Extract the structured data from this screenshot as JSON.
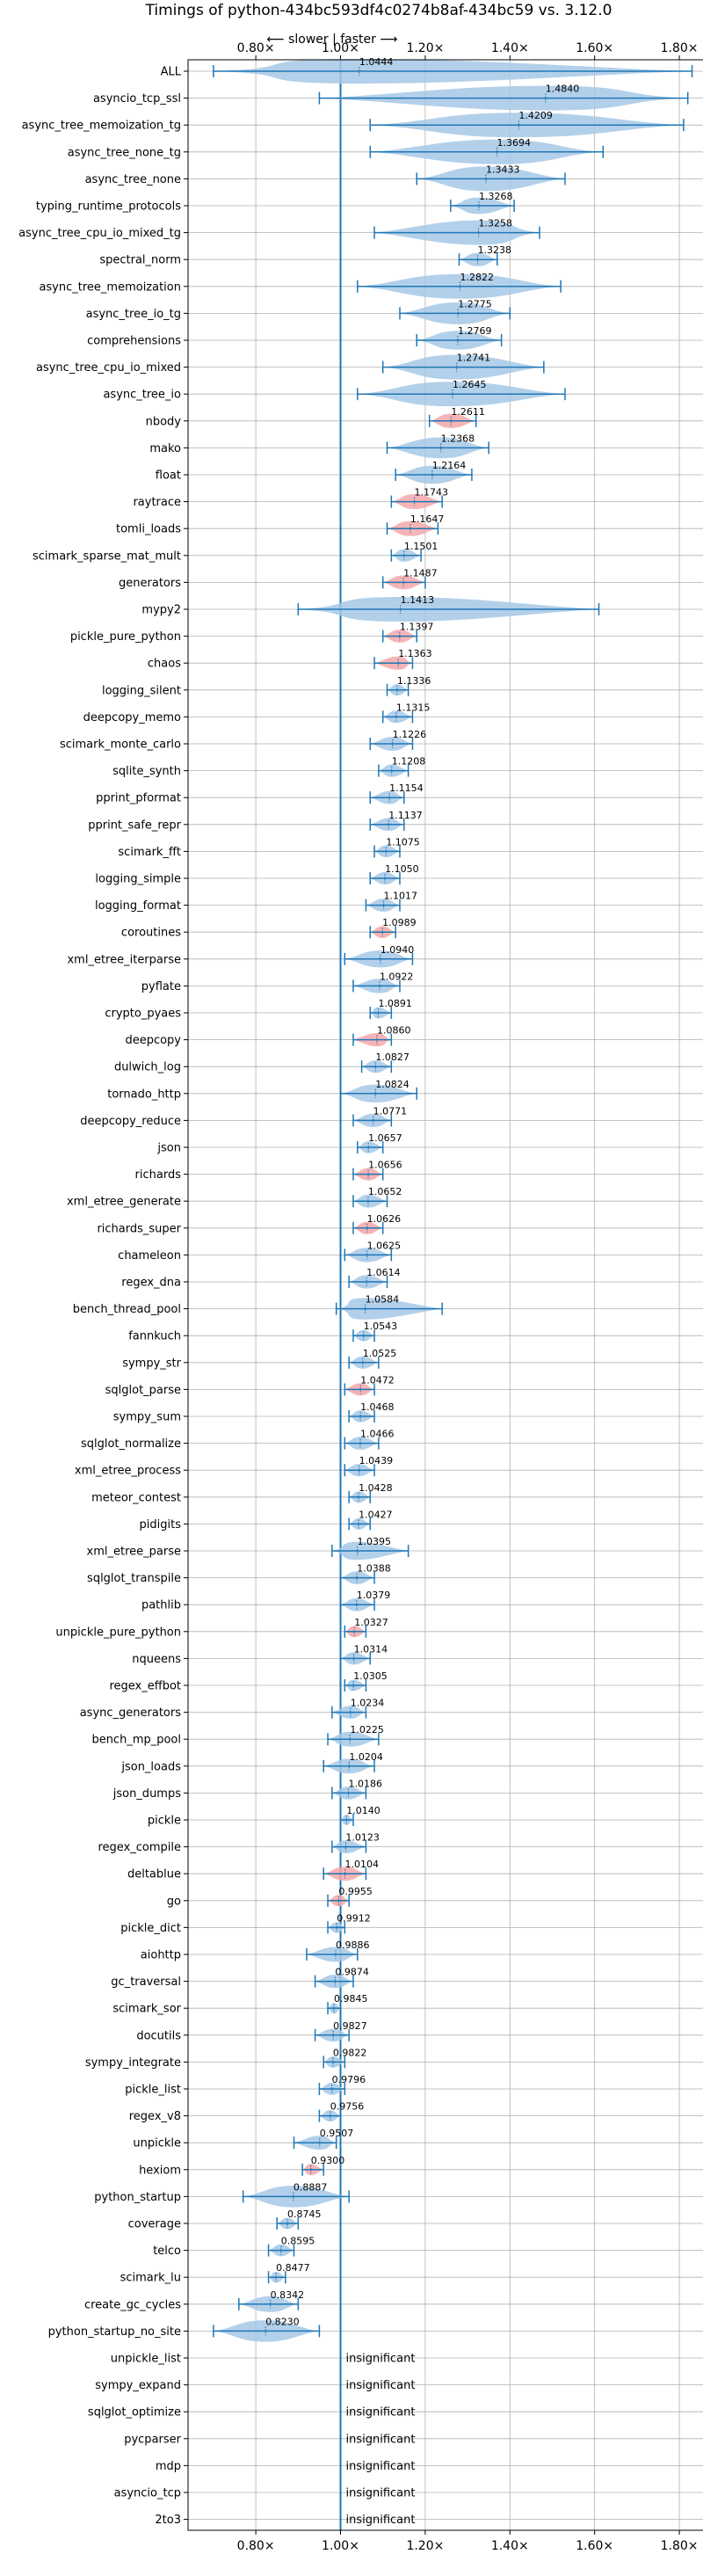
{
  "chart_data": {
    "type": "violin",
    "title": "Timings of python-434bc593df4c0274b8af-434bc59 vs. 3.12.0",
    "direction_label": "⟵ slower | faster ⟶",
    "xlim": [
      0.64,
      1.86
    ],
    "x_ticks": [
      0.8,
      1.0,
      1.2,
      1.4,
      1.6,
      1.8
    ],
    "x_tick_labels": [
      "0.80×",
      "1.00×",
      "1.20×",
      "1.40×",
      "1.60×",
      "1.80×"
    ],
    "reference_line": 1.0,
    "grid": true,
    "colors": {
      "normal": "#a6c8e6",
      "highlight": "#f4a7a9",
      "line": "#1f77b4",
      "grid": "#b0b0b0"
    },
    "insignificant_label": "insignificant",
    "benchmarks": [
      {
        "name": "ALL",
        "value": "1.0444",
        "mid": 1.0444,
        "min": 0.7,
        "max": 1.83
      },
      {
        "name": "asyncio_tcp_ssl",
        "value": "1.4840",
        "mid": 1.484,
        "min": 0.95,
        "max": 1.82
      },
      {
        "name": "async_tree_memoization_tg",
        "value": "1.4209",
        "mid": 1.4209,
        "min": 1.07,
        "max": 1.81
      },
      {
        "name": "async_tree_none_tg",
        "value": "1.3694",
        "mid": 1.3694,
        "min": 1.07,
        "max": 1.62
      },
      {
        "name": "async_tree_none",
        "value": "1.3433",
        "mid": 1.3433,
        "min": 1.18,
        "max": 1.53
      },
      {
        "name": "typing_runtime_protocols",
        "value": "1.3268",
        "mid": 1.3268,
        "min": 1.26,
        "max": 1.41
      },
      {
        "name": "async_tree_cpu_io_mixed_tg",
        "value": "1.3258",
        "mid": 1.3258,
        "min": 1.08,
        "max": 1.47
      },
      {
        "name": "spectral_norm",
        "value": "1.3238",
        "mid": 1.3238,
        "min": 1.28,
        "max": 1.37
      },
      {
        "name": "async_tree_memoization",
        "value": "1.2822",
        "mid": 1.2822,
        "min": 1.04,
        "max": 1.52
      },
      {
        "name": "async_tree_io_tg",
        "value": "1.2775",
        "mid": 1.2775,
        "min": 1.14,
        "max": 1.4
      },
      {
        "name": "comprehensions",
        "value": "1.2769",
        "mid": 1.2769,
        "min": 1.18,
        "max": 1.38
      },
      {
        "name": "async_tree_cpu_io_mixed",
        "value": "1.2741",
        "mid": 1.2741,
        "min": 1.1,
        "max": 1.48
      },
      {
        "name": "async_tree_io",
        "value": "1.2645",
        "mid": 1.2645,
        "min": 1.04,
        "max": 1.53
      },
      {
        "name": "nbody",
        "value": "1.2611",
        "mid": 1.2611,
        "min": 1.21,
        "max": 1.32,
        "highlight": true
      },
      {
        "name": "mako",
        "value": "1.2368",
        "mid": 1.2368,
        "min": 1.11,
        "max": 1.35
      },
      {
        "name": "float",
        "value": "1.2164",
        "mid": 1.2164,
        "min": 1.13,
        "max": 1.31
      },
      {
        "name": "raytrace",
        "value": "1.1743",
        "mid": 1.1743,
        "min": 1.12,
        "max": 1.24,
        "highlight": true
      },
      {
        "name": "tomli_loads",
        "value": "1.1647",
        "mid": 1.1647,
        "min": 1.11,
        "max": 1.23,
        "highlight": true
      },
      {
        "name": "scimark_sparse_mat_mult",
        "value": "1.1501",
        "mid": 1.1501,
        "min": 1.12,
        "max": 1.19
      },
      {
        "name": "generators",
        "value": "1.1487",
        "mid": 1.1487,
        "min": 1.1,
        "max": 1.2,
        "highlight": true
      },
      {
        "name": "mypy2",
        "value": "1.1413",
        "mid": 1.1413,
        "min": 0.9,
        "max": 1.61
      },
      {
        "name": "pickle_pure_python",
        "value": "1.1397",
        "mid": 1.1397,
        "min": 1.1,
        "max": 1.18,
        "highlight": true
      },
      {
        "name": "chaos",
        "value": "1.1363",
        "mid": 1.1363,
        "min": 1.08,
        "max": 1.17,
        "highlight": true
      },
      {
        "name": "logging_silent",
        "value": "1.1336",
        "mid": 1.1336,
        "min": 1.11,
        "max": 1.16
      },
      {
        "name": "deepcopy_memo",
        "value": "1.1315",
        "mid": 1.1315,
        "min": 1.1,
        "max": 1.17
      },
      {
        "name": "scimark_monte_carlo",
        "value": "1.1226",
        "mid": 1.1226,
        "min": 1.07,
        "max": 1.17
      },
      {
        "name": "sqlite_synth",
        "value": "1.1208",
        "mid": 1.1208,
        "min": 1.09,
        "max": 1.16
      },
      {
        "name": "pprint_pformat",
        "value": "1.1154",
        "mid": 1.1154,
        "min": 1.07,
        "max": 1.15
      },
      {
        "name": "pprint_safe_repr",
        "value": "1.1137",
        "mid": 1.1137,
        "min": 1.07,
        "max": 1.15
      },
      {
        "name": "scimark_fft",
        "value": "1.1075",
        "mid": 1.1075,
        "min": 1.08,
        "max": 1.14
      },
      {
        "name": "logging_simple",
        "value": "1.1050",
        "mid": 1.105,
        "min": 1.07,
        "max": 1.14
      },
      {
        "name": "logging_format",
        "value": "1.1017",
        "mid": 1.1017,
        "min": 1.06,
        "max": 1.14
      },
      {
        "name": "coroutines",
        "value": "1.0989",
        "mid": 1.0989,
        "min": 1.07,
        "max": 1.13,
        "highlight": true
      },
      {
        "name": "xml_etree_iterparse",
        "value": "1.0940",
        "mid": 1.094,
        "min": 1.01,
        "max": 1.17
      },
      {
        "name": "pyflate",
        "value": "1.0922",
        "mid": 1.0922,
        "min": 1.03,
        "max": 1.14
      },
      {
        "name": "crypto_pyaes",
        "value": "1.0891",
        "mid": 1.0891,
        "min": 1.07,
        "max": 1.12
      },
      {
        "name": "deepcopy",
        "value": "1.0860",
        "mid": 1.086,
        "min": 1.03,
        "max": 1.12,
        "highlight": true
      },
      {
        "name": "dulwich_log",
        "value": "1.0827",
        "mid": 1.0827,
        "min": 1.05,
        "max": 1.12
      },
      {
        "name": "tornado_http",
        "value": "1.0824",
        "mid": 1.0824,
        "min": 1.0,
        "max": 1.18
      },
      {
        "name": "deepcopy_reduce",
        "value": "1.0771",
        "mid": 1.0771,
        "min": 1.03,
        "max": 1.12
      },
      {
        "name": "json",
        "value": "1.0657",
        "mid": 1.0657,
        "min": 1.04,
        "max": 1.1
      },
      {
        "name": "richards",
        "value": "1.0656",
        "mid": 1.0656,
        "min": 1.03,
        "max": 1.1,
        "highlight": true
      },
      {
        "name": "xml_etree_generate",
        "value": "1.0652",
        "mid": 1.0652,
        "min": 1.03,
        "max": 1.11
      },
      {
        "name": "richards_super",
        "value": "1.0626",
        "mid": 1.0626,
        "min": 1.03,
        "max": 1.1,
        "highlight": true
      },
      {
        "name": "chameleon",
        "value": "1.0625",
        "mid": 1.0625,
        "min": 1.01,
        "max": 1.12
      },
      {
        "name": "regex_dna",
        "value": "1.0614",
        "mid": 1.0614,
        "min": 1.02,
        "max": 1.11
      },
      {
        "name": "bench_thread_pool",
        "value": "1.0584",
        "mid": 1.0584,
        "min": 0.99,
        "max": 1.24
      },
      {
        "name": "fannkuch",
        "value": "1.0543",
        "mid": 1.0543,
        "min": 1.03,
        "max": 1.08
      },
      {
        "name": "sympy_str",
        "value": "1.0525",
        "mid": 1.0525,
        "min": 1.02,
        "max": 1.09
      },
      {
        "name": "sqlglot_parse",
        "value": "1.0472",
        "mid": 1.0472,
        "min": 1.01,
        "max": 1.08,
        "highlight": true
      },
      {
        "name": "sympy_sum",
        "value": "1.0468",
        "mid": 1.0468,
        "min": 1.02,
        "max": 1.08
      },
      {
        "name": "sqlglot_normalize",
        "value": "1.0466",
        "mid": 1.0466,
        "min": 1.01,
        "max": 1.09
      },
      {
        "name": "xml_etree_process",
        "value": "1.0439",
        "mid": 1.0439,
        "min": 1.01,
        "max": 1.08
      },
      {
        "name": "meteor_contest",
        "value": "1.0428",
        "mid": 1.0428,
        "min": 1.02,
        "max": 1.07
      },
      {
        "name": "pidigits",
        "value": "1.0427",
        "mid": 1.0427,
        "min": 1.02,
        "max": 1.07
      },
      {
        "name": "xml_etree_parse",
        "value": "1.0395",
        "mid": 1.0395,
        "min": 0.98,
        "max": 1.16
      },
      {
        "name": "sqlglot_transpile",
        "value": "1.0388",
        "mid": 1.0388,
        "min": 1.0,
        "max": 1.08
      },
      {
        "name": "pathlib",
        "value": "1.0379",
        "mid": 1.0379,
        "min": 1.0,
        "max": 1.08
      },
      {
        "name": "unpickle_pure_python",
        "value": "1.0327",
        "mid": 1.0327,
        "min": 1.01,
        "max": 1.06,
        "highlight": true
      },
      {
        "name": "nqueens",
        "value": "1.0314",
        "mid": 1.0314,
        "min": 1.0,
        "max": 1.07
      },
      {
        "name": "regex_effbot",
        "value": "1.0305",
        "mid": 1.0305,
        "min": 1.01,
        "max": 1.06
      },
      {
        "name": "async_generators",
        "value": "1.0234",
        "mid": 1.0234,
        "min": 0.98,
        "max": 1.06
      },
      {
        "name": "bench_mp_pool",
        "value": "1.0225",
        "mid": 1.0225,
        "min": 0.97,
        "max": 1.09
      },
      {
        "name": "json_loads",
        "value": "1.0204",
        "mid": 1.0204,
        "min": 0.96,
        "max": 1.08
      },
      {
        "name": "json_dumps",
        "value": "1.0186",
        "mid": 1.0186,
        "min": 0.98,
        "max": 1.06
      },
      {
        "name": "pickle",
        "value": "1.0140",
        "mid": 1.014,
        "min": 1.0,
        "max": 1.03
      },
      {
        "name": "regex_compile",
        "value": "1.0123",
        "mid": 1.0123,
        "min": 0.98,
        "max": 1.06
      },
      {
        "name": "deltablue",
        "value": "1.0104",
        "mid": 1.0104,
        "min": 0.96,
        "max": 1.06,
        "highlight": true
      },
      {
        "name": "go",
        "value": "0.9955",
        "mid": 0.9955,
        "min": 0.97,
        "max": 1.02,
        "highlight": true
      },
      {
        "name": "pickle_dict",
        "value": "0.9912",
        "mid": 0.9912,
        "min": 0.97,
        "max": 1.01
      },
      {
        "name": "aiohttp",
        "value": "0.9886",
        "mid": 0.9886,
        "min": 0.92,
        "max": 1.04
      },
      {
        "name": "gc_traversal",
        "value": "0.9874",
        "mid": 0.9874,
        "min": 0.94,
        "max": 1.03
      },
      {
        "name": "scimark_sor",
        "value": "0.9845",
        "mid": 0.9845,
        "min": 0.97,
        "max": 1.0
      },
      {
        "name": "docutils",
        "value": "0.9827",
        "mid": 0.9827,
        "min": 0.94,
        "max": 1.02
      },
      {
        "name": "sympy_integrate",
        "value": "0.9822",
        "mid": 0.9822,
        "min": 0.96,
        "max": 1.01
      },
      {
        "name": "pickle_list",
        "value": "0.9796",
        "mid": 0.9796,
        "min": 0.95,
        "max": 1.01
      },
      {
        "name": "regex_v8",
        "value": "0.9756",
        "mid": 0.9756,
        "min": 0.95,
        "max": 1.0
      },
      {
        "name": "unpickle",
        "value": "0.9507",
        "mid": 0.9507,
        "min": 0.89,
        "max": 0.99
      },
      {
        "name": "hexiom",
        "value": "0.9300",
        "mid": 0.93,
        "min": 0.91,
        "max": 0.96,
        "highlight": true
      },
      {
        "name": "python_startup",
        "value": "0.8887",
        "mid": 0.8887,
        "min": 0.77,
        "max": 1.02
      },
      {
        "name": "coverage",
        "value": "0.8745",
        "mid": 0.8745,
        "min": 0.85,
        "max": 0.9
      },
      {
        "name": "telco",
        "value": "0.8595",
        "mid": 0.8595,
        "min": 0.83,
        "max": 0.89
      },
      {
        "name": "scimark_lu",
        "value": "0.8477",
        "mid": 0.8477,
        "min": 0.83,
        "max": 0.87
      },
      {
        "name": "create_gc_cycles",
        "value": "0.8342",
        "mid": 0.8342,
        "min": 0.76,
        "max": 0.9
      },
      {
        "name": "python_startup_no_site",
        "value": "0.8230",
        "mid": 0.823,
        "min": 0.7,
        "max": 0.95
      },
      {
        "name": "unpickle_list",
        "insignificant": true
      },
      {
        "name": "sympy_expand",
        "insignificant": true
      },
      {
        "name": "sqlglot_optimize",
        "insignificant": true
      },
      {
        "name": "pycparser",
        "insignificant": true
      },
      {
        "name": "mdp",
        "insignificant": true
      },
      {
        "name": "asyncio_tcp",
        "insignificant": true
      },
      {
        "name": "2to3",
        "insignificant": true
      }
    ]
  }
}
